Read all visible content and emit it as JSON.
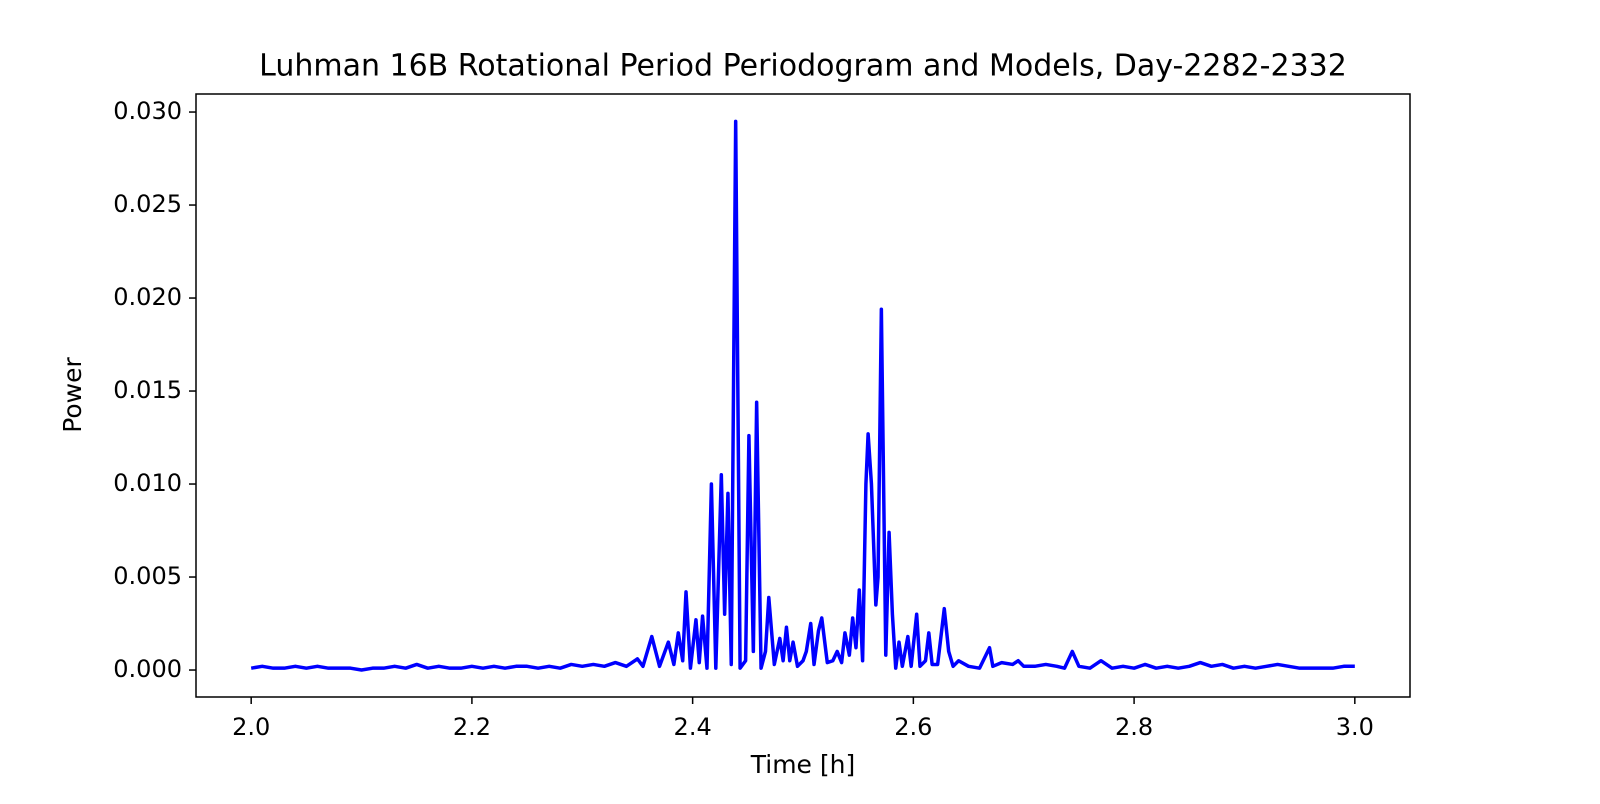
{
  "chart_data": {
    "type": "line",
    "title": "Luhman 16B Rotational Period Periodogram and Models, Day-2282-2332",
    "x_label": "Time [h]",
    "y_label": "Power",
    "x": [
      2.0,
      2.01,
      2.02,
      2.03,
      2.04,
      2.05,
      2.06,
      2.07,
      2.08,
      2.09,
      2.1,
      2.11,
      2.12,
      2.13,
      2.14,
      2.15,
      2.16,
      2.17,
      2.18,
      2.19,
      2.2,
      2.21,
      2.22,
      2.23,
      2.24,
      2.25,
      2.26,
      2.27,
      2.28,
      2.29,
      2.3,
      2.31,
      2.32,
      2.33,
      2.34,
      2.35,
      2.355,
      2.363,
      2.37,
      2.378,
      2.383,
      2.387,
      2.391,
      2.394,
      2.398,
      2.403,
      2.406,
      2.409,
      2.413,
      2.417,
      2.421,
      2.426,
      2.429,
      2.432,
      2.435,
      2.439,
      2.443,
      2.448,
      2.451,
      2.455,
      2.458,
      2.462,
      2.466,
      2.469,
      2.474,
      2.479,
      2.482,
      2.485,
      2.488,
      2.491,
      2.495,
      2.5,
      2.503,
      2.507,
      2.51,
      2.514,
      2.517,
      2.522,
      2.527,
      2.531,
      2.535,
      2.538,
      2.542,
      2.545,
      2.548,
      2.551,
      2.554,
      2.557,
      2.559,
      2.562,
      2.566,
      2.568,
      2.571,
      2.575,
      2.578,
      2.581,
      2.584,
      2.587,
      2.59,
      2.595,
      2.598,
      2.603,
      2.606,
      2.611,
      2.614,
      2.617,
      2.622,
      2.628,
      2.632,
      2.636,
      2.641,
      2.65,
      2.66,
      2.669,
      2.672,
      2.68,
      2.69,
      2.695,
      2.7,
      2.71,
      2.72,
      2.73,
      2.737,
      2.744,
      2.75,
      2.76,
      2.77,
      2.78,
      2.79,
      2.8,
      2.81,
      2.82,
      2.83,
      2.84,
      2.85,
      2.86,
      2.87,
      2.88,
      2.89,
      2.9,
      2.91,
      2.92,
      2.93,
      2.94,
      2.95,
      2.96,
      2.97,
      2.98,
      2.99,
      3.0
    ],
    "series": [
      {
        "color": "#0000ff",
        "values": [
          0.0001,
          0.0002,
          0.0001,
          0.0001,
          0.0002,
          0.0001,
          0.0002,
          0.0001,
          0.0001,
          0.0001,
          0.0,
          0.0001,
          0.0001,
          0.0002,
          0.0001,
          0.0003,
          0.0001,
          0.0002,
          0.0001,
          0.0001,
          0.0002,
          0.0001,
          0.0002,
          0.0001,
          0.0002,
          0.0002,
          0.0001,
          0.0002,
          0.0001,
          0.0003,
          0.0002,
          0.0003,
          0.0002,
          0.0004,
          0.0002,
          0.0006,
          0.0002,
          0.0018,
          0.0002,
          0.0015,
          0.0003,
          0.002,
          0.0005,
          0.0042,
          0.0001,
          0.0027,
          0.0004,
          0.0029,
          0.0001,
          0.01,
          0.0001,
          0.0105,
          0.003,
          0.0095,
          0.0003,
          0.0295,
          0.0001,
          0.0005,
          0.0126,
          0.001,
          0.0144,
          0.0001,
          0.001,
          0.0039,
          0.0003,
          0.0017,
          0.0005,
          0.0023,
          0.0005,
          0.0015,
          0.0002,
          0.0005,
          0.001,
          0.0025,
          0.0003,
          0.0021,
          0.0028,
          0.0004,
          0.0005,
          0.001,
          0.0004,
          0.002,
          0.0008,
          0.0028,
          0.0012,
          0.0043,
          0.0005,
          0.01,
          0.0127,
          0.01,
          0.0035,
          0.005,
          0.0194,
          0.0008,
          0.0074,
          0.003,
          0.0001,
          0.0015,
          0.0002,
          0.0018,
          0.0002,
          0.003,
          0.0002,
          0.0005,
          0.002,
          0.0003,
          0.0003,
          0.0033,
          0.001,
          0.0002,
          0.0005,
          0.0002,
          0.0001,
          0.0012,
          0.0002,
          0.0004,
          0.0003,
          0.0005,
          0.0002,
          0.0002,
          0.0003,
          0.0002,
          0.0001,
          0.001,
          0.0002,
          0.0001,
          0.0005,
          0.0001,
          0.0002,
          0.0001,
          0.0003,
          0.0001,
          0.0002,
          0.0001,
          0.0002,
          0.0004,
          0.0002,
          0.0003,
          0.0001,
          0.0002,
          0.0001,
          0.0002,
          0.0003,
          0.0002,
          0.0001,
          0.0001,
          0.0001,
          0.0001,
          0.0002,
          0.0002
        ]
      }
    ],
    "xlim": [
      1.95,
      3.05
    ],
    "ylim": [
      -0.00145,
      0.03097
    ],
    "xticks": [
      {
        "value": 2.0,
        "label": "2.0"
      },
      2.2,
      2.4,
      2.6,
      2.8,
      {
        "value": 3.0,
        "label": "3.0"
      }
    ],
    "yticks": [
      {
        "value": 0,
        "label": "0.000"
      },
      {
        "value": 0.005,
        "label": "0.005"
      },
      {
        "value": 0.01,
        "label": "0.010"
      },
      {
        "value": 0.015,
        "label": "0.015"
      },
      {
        "value": 0.02,
        "label": "0.020"
      },
      {
        "value": 0.025,
        "label": "0.025"
      },
      {
        "value": 0.03,
        "label": "0.030"
      }
    ],
    "grid": false
  }
}
